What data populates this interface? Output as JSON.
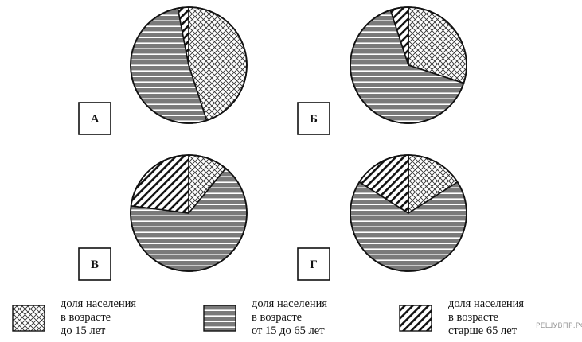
{
  "chart_data": [
    {
      "type": "pie",
      "panel_label": "А",
      "series": [
        {
          "category": "до 15 лет",
          "value": 45
        },
        {
          "category": "от 15 до 65 лет",
          "value": 52
        },
        {
          "category": "старше 65 лет",
          "value": 3
        }
      ]
    },
    {
      "type": "pie",
      "panel_label": "Б",
      "series": [
        {
          "category": "до 15 лет",
          "value": 30
        },
        {
          "category": "от 15 до 65 лет",
          "value": 65
        },
        {
          "category": "старше 65 лет",
          "value": 5
        }
      ]
    },
    {
      "type": "pie",
      "panel_label": "В",
      "series": [
        {
          "category": "до 15 лет",
          "value": 11
        },
        {
          "category": "от 15 до 65 лет",
          "value": 66
        },
        {
          "category": "старше 65 лет",
          "value": 23
        }
      ]
    },
    {
      "type": "pie",
      "panel_label": "Г",
      "series": [
        {
          "category": "до 15 лет",
          "value": 16
        },
        {
          "category": "от 15 до 65 лет",
          "value": 68
        },
        {
          "category": "старше 65 лет",
          "value": 16
        }
      ]
    }
  ],
  "legend": [
    {
      "pattern": "crosshatch",
      "text": "доля населения\nв возрасте\nдо 15 лет"
    },
    {
      "pattern": "horizontal",
      "text": "доля населения\nв возрасте\nот 15 до 65 лет"
    },
    {
      "pattern": "diagonal",
      "text": "доля населения\nв возрасте\nстарше 65 лет"
    }
  ],
  "watermark": "РЕШУВПР.РФ"
}
